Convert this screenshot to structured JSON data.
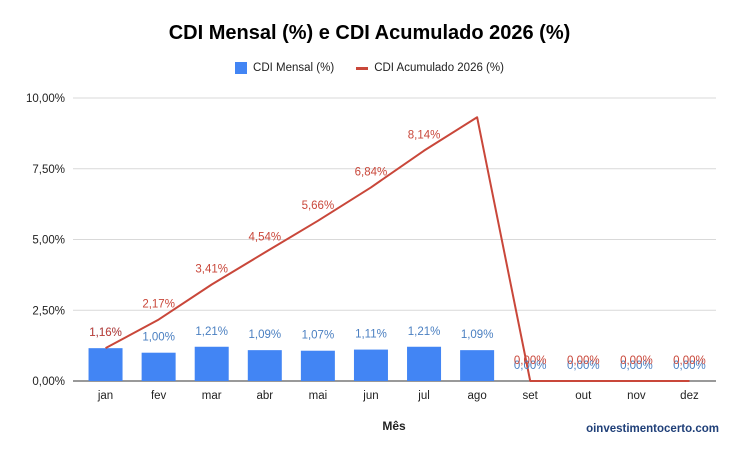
{
  "chart_data": {
    "type": "bar",
    "title": "CDI Mensal (%) e CDI Acumulado 2026 (%)",
    "xlabel": "Mês",
    "ylabel": "",
    "categories": [
      "jan",
      "fev",
      "mar",
      "abr",
      "mai",
      "jun",
      "jul",
      "ago",
      "set",
      "out",
      "nov",
      "dez"
    ],
    "ylim": [
      0,
      10
    ],
    "yticks": [
      "0,00%",
      "2,50%",
      "5,00%",
      "7,50%",
      "10,00%"
    ],
    "ytick_values": [
      0,
      2.5,
      5,
      7.5,
      10
    ],
    "grid": true,
    "legend_position": "top-center",
    "series": [
      {
        "name": "CDI Mensal (%)",
        "type": "bar",
        "color": "#4285f4",
        "label_color": "#4a7fc1",
        "values": [
          1.16,
          1.0,
          1.21,
          1.09,
          1.07,
          1.11,
          1.21,
          1.09,
          0,
          0,
          0,
          0
        ],
        "labels": [
          "1,16%",
          "1,00%",
          "1,21%",
          "1,09%",
          "1,07%",
          "1,11%",
          "1,21%",
          "1,09%",
          "0,00%",
          "0,00%",
          "0,00%",
          "0,00%"
        ]
      },
      {
        "name": "CDI Acumulado 2026 (%)",
        "type": "line",
        "color": "#c9473a",
        "values": [
          1.16,
          2.17,
          3.41,
          4.54,
          5.66,
          6.84,
          8.14,
          9.32,
          0,
          0,
          0,
          0
        ],
        "labels": [
          "1,16%",
          "2,17%",
          "3,41%",
          "4,54%",
          "5,66%",
          "6,84%",
          "8,14%",
          "",
          "0,00%",
          "0,00%",
          "0,00%",
          "0,00%"
        ]
      }
    ]
  },
  "watermark": "oinvestimentocerto.com"
}
